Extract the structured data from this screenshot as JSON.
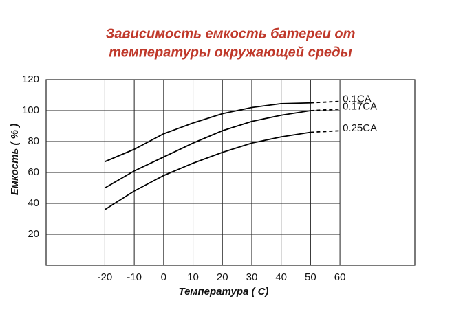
{
  "chart_data": {
    "type": "line",
    "title": [
      "Зависимость емкость батереи от",
      "температуры окружающей среды"
    ],
    "x_label": "Температура ( С)",
    "y_label": "Емкость ( % )",
    "x": [
      -20,
      -10,
      0,
      10,
      20,
      30,
      40,
      50,
      60
    ],
    "dashed_from": 50,
    "series": [
      {
        "name": "0.1CA",
        "color": "#000000",
        "label_color": "#c0392b",
        "values": [
          67,
          75,
          85,
          92,
          98,
          102,
          104.5,
          105,
          106
        ]
      },
      {
        "name": "0.17CA",
        "color": "#000000",
        "label_color": "#c0392b",
        "values": [
          50,
          61,
          70,
          79,
          87,
          93,
          97,
          100,
          101
        ]
      },
      {
        "name": "0.25CA",
        "color": "#000000",
        "label_color": "#c0392b",
        "values": [
          36,
          48,
          58,
          66,
          73,
          79,
          83,
          86,
          87
        ]
      }
    ],
    "xlim": [
      -40,
      85.5
    ],
    "xticks": [
      -20,
      -10,
      0,
      10,
      20,
      30,
      40,
      50,
      60
    ],
    "ylim": [
      0,
      120
    ],
    "yticks": [
      20,
      40,
      60,
      80,
      100,
      120
    ],
    "grid": true
  }
}
